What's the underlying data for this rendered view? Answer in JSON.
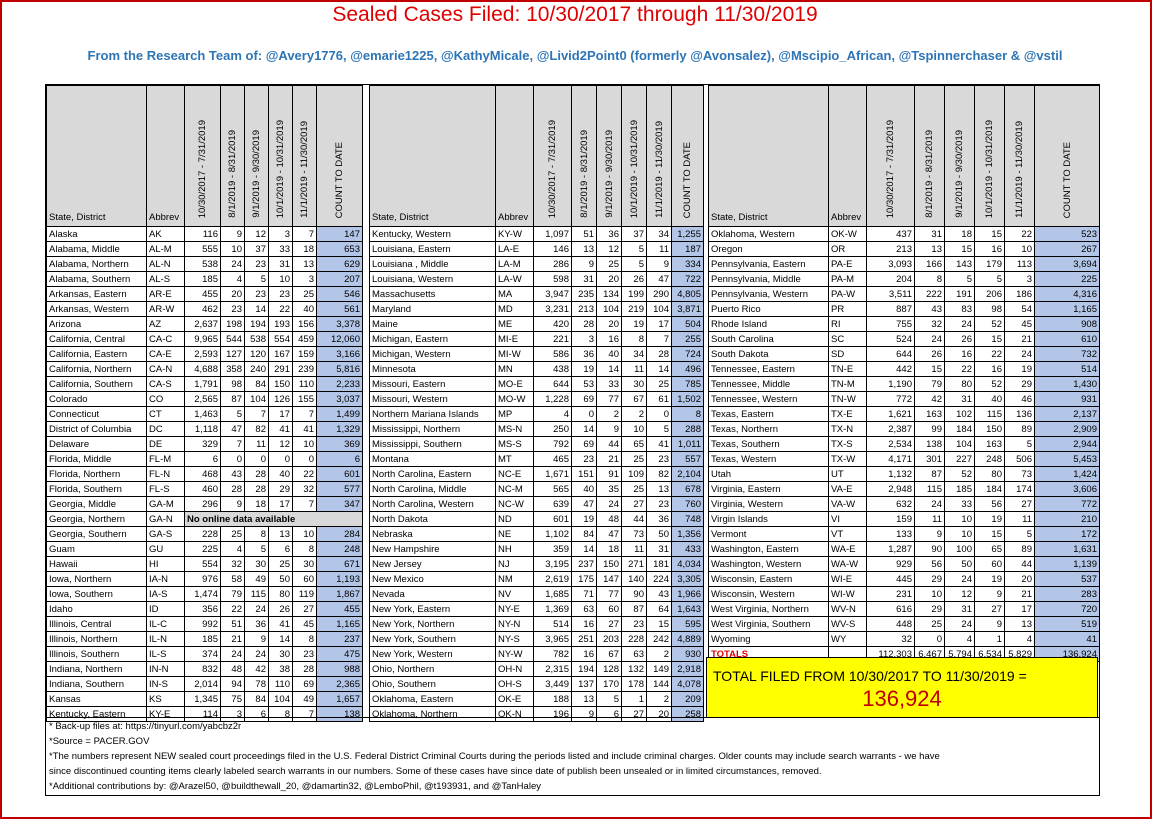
{
  "title": "Sealed Cases Filed: 10/30/2017 through 11/30/2019",
  "subtitle": "From the Research Team of: @Avery1776, @emarie1225, @KathyMicale, @Livid2Point0 (formerly @Avonsalez), @Mscipio_African, @Tspinnerchaser & @vstil",
  "headers": [
    "State, District",
    "Abbrev",
    "10/30/2017 - 7/31/2019",
    "8/1/2019 - 8/31/2019",
    "9/1/2019 - 9/30/2019",
    "10/1/2019 - 10/31/2019",
    "11/1/2019 - 11/30/2019",
    "COUNT TO DATE"
  ],
  "col1": [
    [
      "Alaska",
      "AK",
      "116",
      "9",
      "12",
      "3",
      "7",
      "147"
    ],
    [
      "Alabama, Middle",
      "AL-M",
      "555",
      "10",
      "37",
      "33",
      "18",
      "653"
    ],
    [
      "Alabama, Northern",
      "AL-N",
      "538",
      "24",
      "23",
      "31",
      "13",
      "629"
    ],
    [
      "Alabama, Southern",
      "AL-S",
      "185",
      "4",
      "5",
      "10",
      "3",
      "207"
    ],
    [
      "Arkansas, Eastern",
      "AR-E",
      "455",
      "20",
      "23",
      "23",
      "25",
      "546"
    ],
    [
      "Arkansas, Western",
      "AR-W",
      "462",
      "23",
      "14",
      "22",
      "40",
      "561"
    ],
    [
      "Arizona",
      "AZ",
      "2,637",
      "198",
      "194",
      "193",
      "156",
      "3,378"
    ],
    [
      "California, Central",
      "CA-C",
      "9,965",
      "544",
      "538",
      "554",
      "459",
      "12,060"
    ],
    [
      "California, Eastern",
      "CA-E",
      "2,593",
      "127",
      "120",
      "167",
      "159",
      "3,166"
    ],
    [
      "California, Northern",
      "CA-N",
      "4,688",
      "358",
      "240",
      "291",
      "239",
      "5,816"
    ],
    [
      "California, Southern",
      "CA-S",
      "1,791",
      "98",
      "84",
      "150",
      "110",
      "2,233"
    ],
    [
      "Colorado",
      "CO",
      "2,565",
      "87",
      "104",
      "126",
      "155",
      "3,037"
    ],
    [
      "Connecticut",
      "CT",
      "1,463",
      "5",
      "7",
      "17",
      "7",
      "1,499"
    ],
    [
      "District of Columbia",
      "DC",
      "1,118",
      "47",
      "82",
      "41",
      "41",
      "1,329"
    ],
    [
      "Delaware",
      "DE",
      "329",
      "7",
      "11",
      "12",
      "10",
      "369"
    ],
    [
      "Florida, Middle",
      "FL-M",
      "6",
      "0",
      "0",
      "0",
      "0",
      "6"
    ],
    [
      "Florida, Northern",
      "FL-N",
      "468",
      "43",
      "28",
      "40",
      "22",
      "601"
    ],
    [
      "Florida, Southern",
      "FL-S",
      "460",
      "28",
      "28",
      "29",
      "32",
      "577"
    ],
    [
      "Georgia, Middle",
      "GA-M",
      "296",
      "9",
      "18",
      "17",
      "7",
      "347"
    ],
    [
      "Georgia, Northern",
      "GA-N",
      "No online data available",
      "",
      "",
      "",
      "",
      ""
    ],
    [
      "Georgia, Southern",
      "GA-S",
      "228",
      "25",
      "8",
      "13",
      "10",
      "284"
    ],
    [
      "Guam",
      "GU",
      "225",
      "4",
      "5",
      "6",
      "8",
      "248"
    ],
    [
      "Hawaii",
      "HI",
      "554",
      "32",
      "30",
      "25",
      "30",
      "671"
    ],
    [
      "Iowa, Northern",
      "IA-N",
      "976",
      "58",
      "49",
      "50",
      "60",
      "1,193"
    ],
    [
      "Iowa, Southern",
      "IA-S",
      "1,474",
      "79",
      "115",
      "80",
      "119",
      "1,867"
    ],
    [
      "Idaho",
      "ID",
      "356",
      "22",
      "24",
      "26",
      "27",
      "455"
    ],
    [
      "Illinois, Central",
      "IL-C",
      "992",
      "51",
      "36",
      "41",
      "45",
      "1,165"
    ],
    [
      "Illinois, Northern",
      "IL-N",
      "185",
      "21",
      "9",
      "14",
      "8",
      "237"
    ],
    [
      "Illinois, Southern",
      "IL-S",
      "374",
      "24",
      "24",
      "30",
      "23",
      "475"
    ],
    [
      "Indiana, Northern",
      "IN-N",
      "832",
      "48",
      "42",
      "38",
      "28",
      "988"
    ],
    [
      "Indiana, Southern",
      "IN-S",
      "2,014",
      "94",
      "78",
      "110",
      "69",
      "2,365"
    ],
    [
      "Kansas",
      "KS",
      "1,345",
      "75",
      "84",
      "104",
      "49",
      "1,657"
    ],
    [
      "Kentucky, Eastern",
      "KY-E",
      "114",
      "3",
      "6",
      "8",
      "7",
      "138"
    ]
  ],
  "col2": [
    [
      "Kentucky, Western",
      "KY-W",
      "1,097",
      "51",
      "36",
      "37",
      "34",
      "1,255"
    ],
    [
      "Louisiana, Eastern",
      "LA-E",
      "146",
      "13",
      "12",
      "5",
      "11",
      "187"
    ],
    [
      "Louisiana , Middle",
      "LA-M",
      "286",
      "9",
      "25",
      "5",
      "9",
      "334"
    ],
    [
      "Louisiana, Western",
      "LA-W",
      "598",
      "31",
      "20",
      "26",
      "47",
      "722"
    ],
    [
      "Massachusetts",
      "MA",
      "3,947",
      "235",
      "134",
      "199",
      "290",
      "4,805"
    ],
    [
      "Maryland",
      "MD",
      "3,231",
      "213",
      "104",
      "219",
      "104",
      "3,871"
    ],
    [
      "Maine",
      "ME",
      "420",
      "28",
      "20",
      "19",
      "17",
      "504"
    ],
    [
      "Michigan, Eastern",
      "MI-E",
      "221",
      "3",
      "16",
      "8",
      "7",
      "255"
    ],
    [
      "Michigan, Western",
      "MI-W",
      "586",
      "36",
      "40",
      "34",
      "28",
      "724"
    ],
    [
      "Minnesota",
      "MN",
      "438",
      "19",
      "14",
      "11",
      "14",
      "496"
    ],
    [
      "Missouri, Eastern",
      "MO-E",
      "644",
      "53",
      "33",
      "30",
      "25",
      "785"
    ],
    [
      "Missouri, Western",
      "MO-W",
      "1,228",
      "69",
      "77",
      "67",
      "61",
      "1,502"
    ],
    [
      "Northern Mariana Islands",
      "MP",
      "4",
      "0",
      "2",
      "2",
      "0",
      "8"
    ],
    [
      "Mississippi, Northern",
      "MS-N",
      "250",
      "14",
      "9",
      "10",
      "5",
      "288"
    ],
    [
      "Mississippi, Southern",
      "MS-S",
      "792",
      "69",
      "44",
      "65",
      "41",
      "1,011"
    ],
    [
      "Montana",
      "MT",
      "465",
      "23",
      "21",
      "25",
      "23",
      "557"
    ],
    [
      "North Carolina, Eastern",
      "NC-E",
      "1,671",
      "151",
      "91",
      "109",
      "82",
      "2,104"
    ],
    [
      "North Carolina, Middle",
      "NC-M",
      "565",
      "40",
      "35",
      "25",
      "13",
      "678"
    ],
    [
      "North Carolina, Western",
      "NC-W",
      "639",
      "47",
      "24",
      "27",
      "23",
      "760"
    ],
    [
      "North Dakota",
      "ND",
      "601",
      "19",
      "48",
      "44",
      "36",
      "748"
    ],
    [
      "Nebraska",
      "NE",
      "1,102",
      "84",
      "47",
      "73",
      "50",
      "1,356"
    ],
    [
      "New Hampshire",
      "NH",
      "359",
      "14",
      "18",
      "11",
      "31",
      "433"
    ],
    [
      "New Jersey",
      "NJ",
      "3,195",
      "237",
      "150",
      "271",
      "181",
      "4,034"
    ],
    [
      "New Mexico",
      "NM",
      "2,619",
      "175",
      "147",
      "140",
      "224",
      "3,305"
    ],
    [
      "Nevada",
      "NV",
      "1,685",
      "71",
      "77",
      "90",
      "43",
      "1,966"
    ],
    [
      "New York, Eastern",
      "NY-E",
      "1,369",
      "63",
      "60",
      "87",
      "64",
      "1,643"
    ],
    [
      "New York, Northern",
      "NY-N",
      "514",
      "16",
      "27",
      "23",
      "15",
      "595"
    ],
    [
      "New York, Southern",
      "NY-S",
      "3,965",
      "251",
      "203",
      "228",
      "242",
      "4,889"
    ],
    [
      "New York, Western",
      "NY-W",
      "782",
      "16",
      "67",
      "63",
      "2",
      "930"
    ],
    [
      "Ohio, Northern",
      "OH-N",
      "2,315",
      "194",
      "128",
      "132",
      "149",
      "2,918"
    ],
    [
      "Ohio, Southern",
      "OH-S",
      "3,449",
      "137",
      "170",
      "178",
      "144",
      "4,078"
    ],
    [
      "Oklahoma, Eastern",
      "OK-E",
      "188",
      "13",
      "5",
      "1",
      "2",
      "209"
    ],
    [
      "Oklahoma, Northern",
      "OK-N",
      "196",
      "9",
      "6",
      "27",
      "20",
      "258"
    ]
  ],
  "col3": [
    [
      "Oklahoma, Western",
      "OK-W",
      "437",
      "31",
      "18",
      "15",
      "22",
      "523"
    ],
    [
      "Oregon",
      "OR",
      "213",
      "13",
      "15",
      "16",
      "10",
      "267"
    ],
    [
      "Pennsylvania, Eastern",
      "PA-E",
      "3,093",
      "166",
      "143",
      "179",
      "113",
      "3,694"
    ],
    [
      "Pennsylvania, Middle",
      "PA-M",
      "204",
      "8",
      "5",
      "5",
      "3",
      "225"
    ],
    [
      "Pennsylvania, Western",
      "PA-W",
      "3,511",
      "222",
      "191",
      "206",
      "186",
      "4,316"
    ],
    [
      "Puerto Rico",
      "PR",
      "887",
      "43",
      "83",
      "98",
      "54",
      "1,165"
    ],
    [
      "Rhode Island",
      "RI",
      "755",
      "32",
      "24",
      "52",
      "45",
      "908"
    ],
    [
      "South Carolina",
      "SC",
      "524",
      "24",
      "26",
      "15",
      "21",
      "610"
    ],
    [
      "South Dakota",
      "SD",
      "644",
      "26",
      "16",
      "22",
      "24",
      "732"
    ],
    [
      "Tennessee, Eastern",
      "TN-E",
      "442",
      "15",
      "22",
      "16",
      "19",
      "514"
    ],
    [
      "Tennessee, Middle",
      "TN-M",
      "1,190",
      "79",
      "80",
      "52",
      "29",
      "1,430"
    ],
    [
      "Tennessee, Western",
      "TN-W",
      "772",
      "42",
      "31",
      "40",
      "46",
      "931"
    ],
    [
      "Texas, Eastern",
      "TX-E",
      "1,621",
      "163",
      "102",
      "115",
      "136",
      "2,137"
    ],
    [
      "Texas, Northern",
      "TX-N",
      "2,387",
      "99",
      "184",
      "150",
      "89",
      "2,909"
    ],
    [
      "Texas, Southern",
      "TX-S",
      "2,534",
      "138",
      "104",
      "163",
      "5",
      "2,944"
    ],
    [
      "Texas, Western",
      "TX-W",
      "4,171",
      "301",
      "227",
      "248",
      "506",
      "5,453"
    ],
    [
      "Utah",
      "UT",
      "1,132",
      "87",
      "52",
      "80",
      "73",
      "1,424"
    ],
    [
      "Virginia, Eastern",
      "VA-E",
      "2,948",
      "115",
      "185",
      "184",
      "174",
      "3,606"
    ],
    [
      "Virginia, Western",
      "VA-W",
      "632",
      "24",
      "33",
      "56",
      "27",
      "772"
    ],
    [
      "Virgin Islands",
      "VI",
      "159",
      "11",
      "10",
      "19",
      "11",
      "210"
    ],
    [
      "Vermont",
      "VT",
      "133",
      "9",
      "10",
      "15",
      "5",
      "172"
    ],
    [
      "Washington, Eastern",
      "WA-E",
      "1,287",
      "90",
      "100",
      "65",
      "89",
      "1,631"
    ],
    [
      "Washington, Western",
      "WA-W",
      "929",
      "56",
      "50",
      "60",
      "44",
      "1,139"
    ],
    [
      "Wisconsin, Eastern",
      "WI-E",
      "445",
      "29",
      "24",
      "19",
      "20",
      "537"
    ],
    [
      "Wisconsin, Western",
      "WI-W",
      "231",
      "10",
      "12",
      "9",
      "21",
      "283"
    ],
    [
      "West Virginia, Northern",
      "WV-N",
      "616",
      "29",
      "31",
      "27",
      "17",
      "720"
    ],
    [
      "West Virginia, Southern",
      "WV-S",
      "448",
      "25",
      "24",
      "9",
      "13",
      "519"
    ],
    [
      "Wyoming",
      "WY",
      "32",
      "0",
      "4",
      "1",
      "4",
      "41"
    ],
    [
      "TOTALS",
      "",
      "112,303",
      "6,467",
      "5,794",
      "6,534",
      "5,829",
      "136,924"
    ]
  ],
  "total_box": {
    "label": "TOTAL FILED FROM 10/30/2017 TO 11/30/2019 =",
    "value": "136,924"
  },
  "notes": [
    "* Back-up files at: https://tinyurl.com/yabcbz2r",
    "*Source = PACER.GOV",
    "*The numbers represent NEW sealed court proceedings filed in the U.S. Federal District Criminal Courts during the periods listed and include criminal charges. Older counts may include search warrants - we have",
    "since discontinued counting items clearly labeled search warrants in our numbers. Some of these cases have since date of publish been unsealed or in limited circumstances, removed.",
    "*Additional contributions by: @Arazel50, @buildthewall_20, @damartin32, @LemboPhil, @t193931, and @TanHaley"
  ]
}
